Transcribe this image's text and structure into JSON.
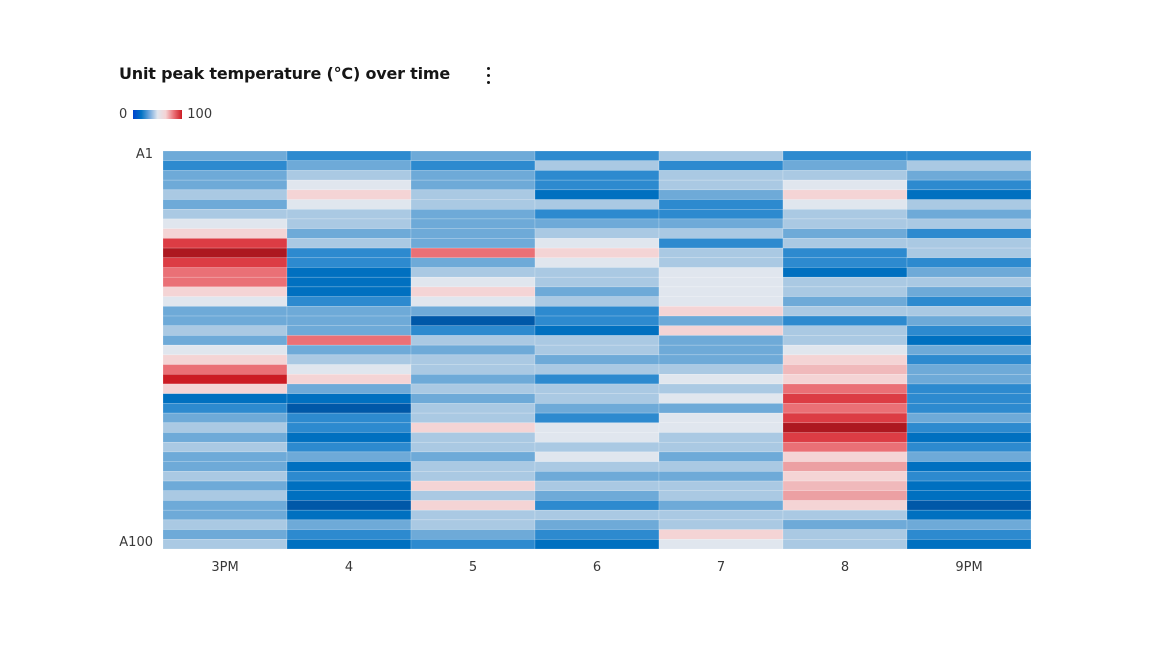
{
  "header": {
    "title": "Unit peak temperature (°C) over time",
    "menu_icon": "overflow-menu-vertical-icon"
  },
  "legend": {
    "min_label": "0",
    "max_label": "100",
    "gradient": [
      "#0043ce",
      "#0072c3",
      "#6ea6dc",
      "#e0e6ee",
      "#f4d4d5",
      "#ea7076",
      "#cc1c24"
    ]
  },
  "chart_data": {
    "type": "heatmap",
    "title": "Unit peak temperature (°C) over time",
    "x_categories": [
      "3PM",
      "4",
      "5",
      "6",
      "7",
      "8",
      "9PM"
    ],
    "y_tick_labels": [
      "A1",
      "A100"
    ],
    "value_range": [
      0,
      100
    ],
    "color_levels": [
      {
        "value": 5,
        "color": "#0058a8"
      },
      {
        "value": 15,
        "color": "#0070c0"
      },
      {
        "value": 25,
        "color": "#2d8acf"
      },
      {
        "value": 35,
        "color": "#6eaad8"
      },
      {
        "value": 45,
        "color": "#aac9e3"
      },
      {
        "value": 55,
        "color": "#e0e6ee"
      },
      {
        "value": 63,
        "color": "#f4d4d5"
      },
      {
        "value": 68,
        "color": "#f0b9bb"
      },
      {
        "value": 72,
        "color": "#eca0a3"
      },
      {
        "value": 78,
        "color": "#ea7076"
      },
      {
        "value": 86,
        "color": "#dc3c44"
      },
      {
        "value": 90,
        "color": "#cc1c24"
      },
      {
        "value": 96,
        "color": "#ad1820"
      }
    ],
    "columns": [
      [
        35,
        25,
        35,
        35,
        45,
        35,
        45,
        55,
        63,
        86,
        96,
        86,
        78,
        78,
        63,
        55,
        35,
        35,
        45,
        35,
        55,
        63,
        78,
        90,
        63,
        15,
        25,
        35,
        45,
        35,
        45,
        35,
        35,
        45,
        35,
        45,
        35,
        35,
        45,
        35,
        45
      ],
      [
        25,
        35,
        45,
        55,
        63,
        55,
        45,
        45,
        35,
        45,
        25,
        25,
        15,
        15,
        15,
        25,
        35,
        35,
        35,
        78,
        35,
        45,
        55,
        63,
        35,
        15,
        5,
        25,
        25,
        15,
        25,
        35,
        15,
        25,
        15,
        15,
        5,
        15,
        35,
        25,
        15
      ],
      [
        35,
        25,
        35,
        35,
        45,
        45,
        35,
        35,
        35,
        35,
        78,
        35,
        45,
        55,
        63,
        55,
        35,
        5,
        25,
        45,
        35,
        45,
        45,
        35,
        45,
        35,
        45,
        45,
        63,
        45,
        45,
        35,
        45,
        45,
        63,
        45,
        63,
        45,
        45,
        35,
        25
      ],
      [
        25,
        45,
        25,
        25,
        15,
        45,
        25,
        35,
        45,
        55,
        63,
        55,
        45,
        45,
        35,
        45,
        25,
        25,
        15,
        45,
        45,
        35,
        45,
        25,
        45,
        45,
        35,
        25,
        55,
        55,
        45,
        55,
        45,
        35,
        45,
        35,
        25,
        45,
        35,
        25,
        15
      ],
      [
        45,
        25,
        45,
        45,
        35,
        25,
        25,
        35,
        45,
        25,
        45,
        45,
        55,
        55,
        55,
        55,
        63,
        35,
        63,
        35,
        35,
        35,
        45,
        55,
        45,
        55,
        35,
        55,
        55,
        45,
        45,
        35,
        45,
        35,
        45,
        45,
        35,
        45,
        45,
        63,
        55
      ],
      [
        25,
        35,
        45,
        55,
        63,
        55,
        45,
        45,
        35,
        45,
        25,
        25,
        15,
        45,
        45,
        35,
        45,
        25,
        45,
        45,
        55,
        63,
        68,
        63,
        78,
        86,
        78,
        86,
        96,
        86,
        78,
        63,
        72,
        63,
        68,
        72,
        63,
        45,
        35,
        45,
        45
      ],
      [
        25,
        45,
        35,
        25,
        15,
        45,
        35,
        45,
        25,
        45,
        45,
        25,
        35,
        45,
        35,
        25,
        45,
        35,
        25,
        15,
        35,
        25,
        35,
        35,
        25,
        25,
        25,
        35,
        25,
        15,
        25,
        35,
        15,
        25,
        15,
        15,
        5,
        15,
        35,
        25,
        15
      ]
    ]
  }
}
